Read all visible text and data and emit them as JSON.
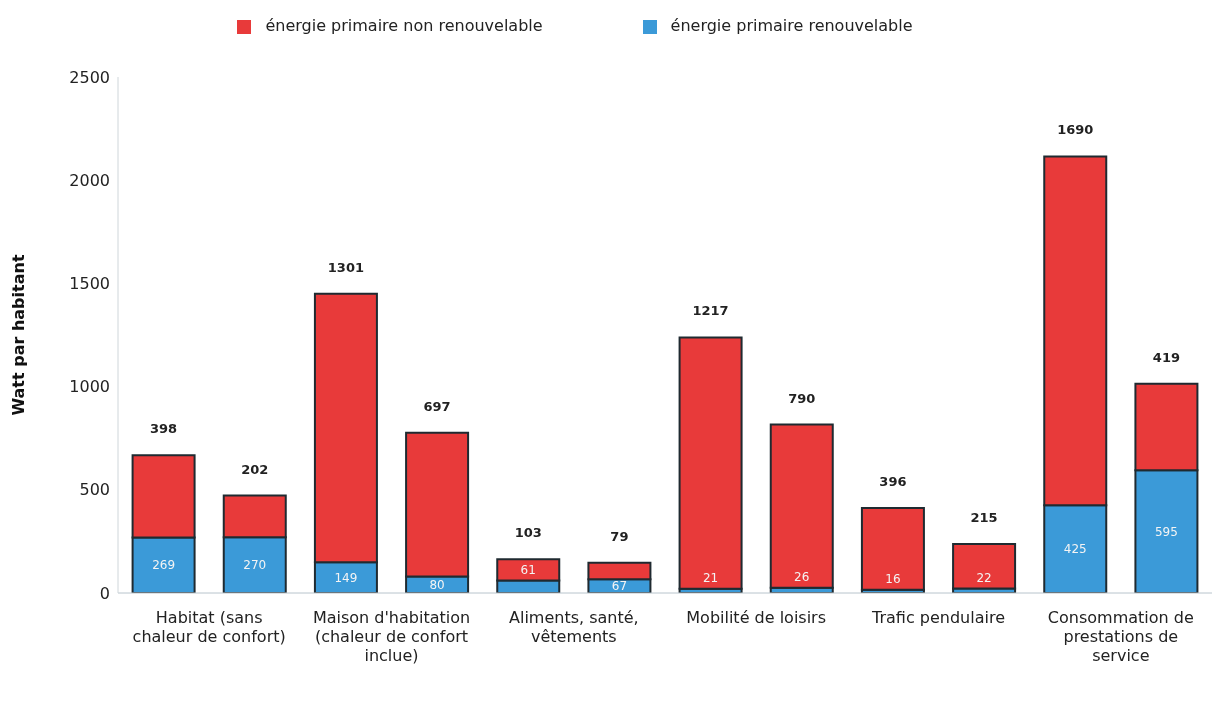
{
  "chart_data": {
    "type": "bar",
    "stacked": true,
    "ylabel": "Watt par habitant",
    "categories": [
      "Habitat (sans chaleur de confort)",
      null,
      "Maison d'habitation (chaleur de confort inclue)",
      null,
      "Aliments, santé, vêtements",
      null,
      "Mobilité de loisirs",
      null,
      "Trafic pendulaire",
      null,
      "Consommation de prestations de service",
      null
    ],
    "series": [
      {
        "name": "énergie primaire renouvelable",
        "color": "#3b9ad8",
        "values": [
          269,
          270,
          149,
          80,
          61,
          67,
          21,
          26,
          16,
          22,
          425,
          595
        ]
      },
      {
        "name": "énergie primaire non renouvelable",
        "color": "#e83a3a",
        "values": [
          398,
          202,
          1301,
          697,
          103,
          79,
          1217,
          790,
          396,
          215,
          1690,
          419
        ]
      }
    ],
    "ylim": [
      0,
      2500
    ],
    "yticks": [
      0,
      500,
      1000,
      1500,
      2000,
      2500
    ],
    "data_labels": true,
    "legend": "top",
    "grid": false
  }
}
